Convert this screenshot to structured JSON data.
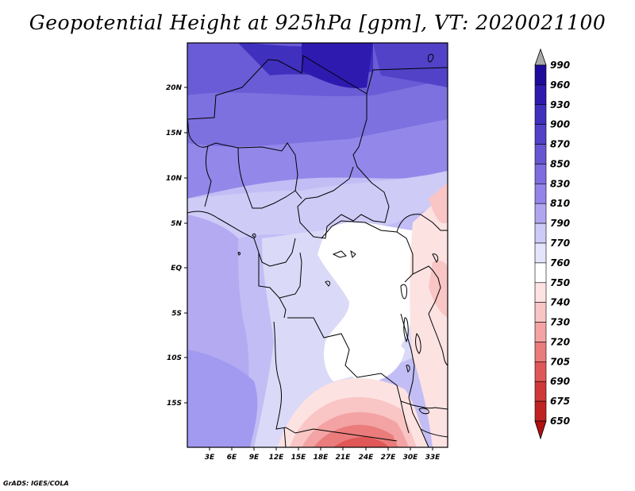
{
  "title": "Geopotential Height at 925hPa [gpm], VT: 2020021100",
  "credit": "GrADS: IGES/COLA",
  "map": {
    "lat_labels": [
      "20N",
      "15N",
      "10N",
      "5N",
      "EQ",
      "5S",
      "10S",
      "15S"
    ],
    "lon_labels": [
      "3E",
      "6E",
      "9E",
      "12E",
      "15E",
      "18E",
      "21E",
      "24E",
      "27E",
      "30E",
      "33E"
    ]
  },
  "colorbar": {
    "levels": [
      "990",
      "960",
      "930",
      "900",
      "870",
      "850",
      "830",
      "810",
      "790",
      "770",
      "760",
      "750",
      "740",
      "730",
      "720",
      "705",
      "690",
      "675",
      "650"
    ],
    "colors": [
      "#aaaaaa",
      "#1e0a9b",
      "#2e1aaf",
      "#3f30be",
      "#5142c8",
      "#6756d2",
      "#7d6dde",
      "#9384ea",
      "#b0a6f0",
      "#cccaf6",
      "#e4e4fa",
      "#ffffff",
      "#fde2e2",
      "#f9c5c5",
      "#f3a3a3",
      "#ea7c7c",
      "#e05757",
      "#d03838",
      "#c02222",
      "#b01010"
    ]
  }
}
